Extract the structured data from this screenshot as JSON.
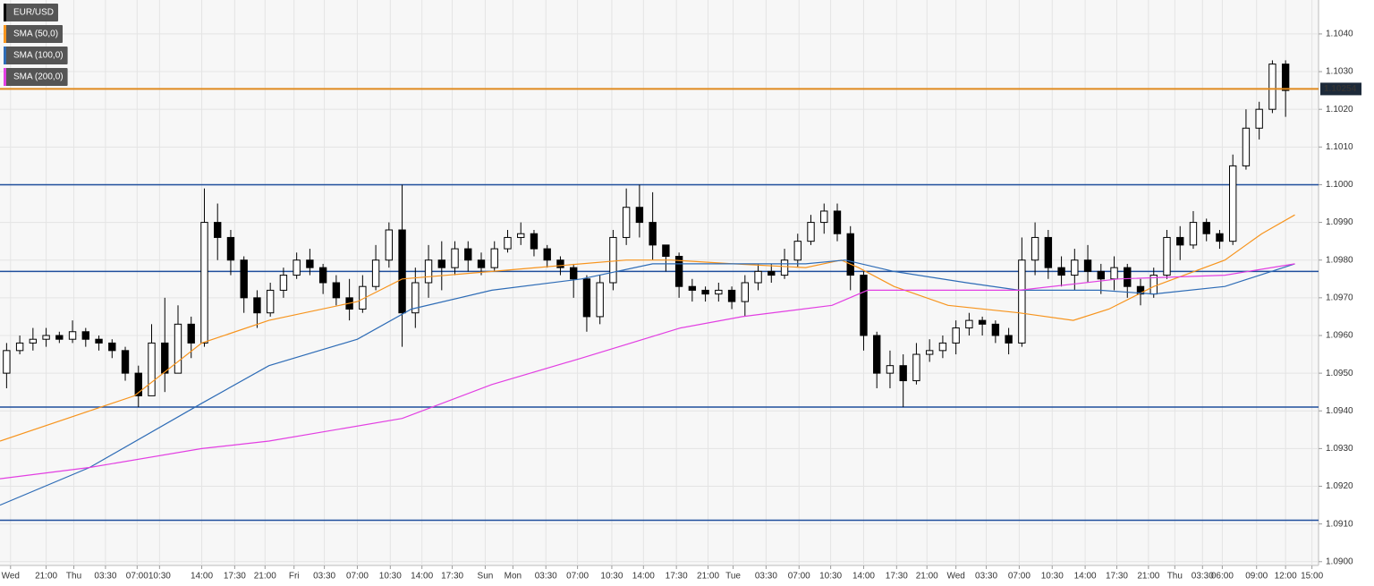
{
  "chart_data": {
    "type": "candlestick",
    "symbol": "EUR/USD",
    "xlim": [
      0,
      100
    ],
    "ylim": [
      1.0899,
      1.1049
    ],
    "grid": true,
    "up_color": "#ffffff",
    "down_color": "#000000",
    "ohlc": [
      [
        1.095,
        1.0958,
        1.0946,
        1.0956
      ],
      [
        1.0956,
        1.096,
        1.0955,
        1.0958
      ],
      [
        1.0958,
        1.0962,
        1.0956,
        1.0959
      ],
      [
        1.0959,
        1.0962,
        1.0957,
        1.096
      ],
      [
        1.096,
        1.0961,
        1.0958,
        1.0959
      ],
      [
        1.0959,
        1.0964,
        1.0958,
        1.0961
      ],
      [
        1.0961,
        1.0962,
        1.0957,
        1.0959
      ],
      [
        1.0959,
        1.096,
        1.0956,
        1.0958
      ],
      [
        1.0958,
        1.0959,
        1.0954,
        1.0956
      ],
      [
        1.0956,
        1.0957,
        1.0948,
        1.095
      ],
      [
        1.095,
        1.0952,
        1.0941,
        1.0944
      ],
      [
        1.0944,
        1.0963,
        1.0944,
        1.0958
      ],
      [
        1.0958,
        1.097,
        1.0945,
        1.095
      ],
      [
        1.095,
        1.0968,
        1.095,
        1.0963
      ],
      [
        1.0963,
        1.0965,
        1.0954,
        1.0958
      ],
      [
        1.0958,
        1.0999,
        1.0957,
        1.099
      ],
      [
        1.099,
        1.0995,
        1.098,
        1.0986
      ],
      [
        1.0986,
        1.0988,
        1.0976,
        1.098
      ],
      [
        1.098,
        1.0981,
        1.0966,
        1.097
      ],
      [
        1.097,
        1.0972,
        1.0962,
        1.0966
      ],
      [
        1.0966,
        1.0974,
        1.0965,
        1.0972
      ],
      [
        1.0972,
        1.0978,
        1.097,
        1.0976
      ],
      [
        1.0976,
        1.0982,
        1.0975,
        1.098
      ],
      [
        1.098,
        1.0983,
        1.0976,
        1.0978
      ],
      [
        1.0978,
        1.0979,
        1.0971,
        1.0974
      ],
      [
        1.0974,
        1.0976,
        1.0968,
        1.097
      ],
      [
        1.097,
        1.0975,
        1.0964,
        1.0967
      ],
      [
        1.0967,
        1.0976,
        1.0966,
        1.0973
      ],
      [
        1.0973,
        1.0984,
        1.0972,
        1.098
      ],
      [
        1.098,
        1.099,
        1.0978,
        1.0988
      ],
      [
        1.0988,
        1.1,
        1.0957,
        1.0966
      ],
      [
        1.0966,
        1.0978,
        1.0962,
        1.0974
      ],
      [
        1.0974,
        1.0984,
        1.097,
        1.098
      ],
      [
        1.098,
        1.0985,
        1.0972,
        1.0978
      ],
      [
        1.0978,
        1.0985,
        1.0976,
        1.0983
      ],
      [
        1.0983,
        1.0985,
        1.0977,
        1.098
      ],
      [
        1.098,
        1.0982,
        1.0976,
        1.0978
      ],
      [
        1.0978,
        1.0985,
        1.0977,
        1.0983
      ],
      [
        1.0983,
        1.0988,
        1.0982,
        1.0986
      ],
      [
        1.0986,
        1.099,
        1.0984,
        1.0987
      ],
      [
        1.0987,
        1.0988,
        1.0981,
        1.0983
      ],
      [
        1.0983,
        1.0984,
        1.0978,
        1.098
      ],
      [
        1.098,
        1.0981,
        1.0976,
        1.0978
      ],
      [
        1.0978,
        1.0979,
        1.097,
        1.0975
      ],
      [
        1.0975,
        1.0976,
        1.0961,
        1.0965
      ],
      [
        1.0965,
        1.0976,
        1.0963,
        1.0974
      ],
      [
        1.0974,
        1.0988,
        1.0972,
        1.0986
      ],
      [
        1.0986,
        1.0999,
        1.0984,
        1.0994
      ],
      [
        1.0994,
        1.1,
        1.0986,
        1.099
      ],
      [
        1.099,
        1.0998,
        1.098,
        1.0984
      ],
      [
        1.0984,
        1.0984,
        1.0977,
        1.0981
      ],
      [
        1.0981,
        1.0982,
        1.097,
        1.0973
      ],
      [
        1.0973,
        1.0975,
        1.0969,
        1.0972
      ],
      [
        1.0972,
        1.0973,
        1.0969,
        1.0971
      ],
      [
        1.0971,
        1.0974,
        1.0969,
        1.0972
      ],
      [
        1.0972,
        1.0973,
        1.0967,
        1.0969
      ],
      [
        1.0969,
        1.0976,
        1.0965,
        1.0974
      ],
      [
        1.0974,
        1.0979,
        1.0972,
        1.0977
      ],
      [
        1.0977,
        1.0979,
        1.0974,
        1.0976
      ],
      [
        1.0976,
        1.0983,
        1.0975,
        1.098
      ],
      [
        1.098,
        1.0987,
        1.0978,
        1.0985
      ],
      [
        1.0985,
        1.0992,
        1.0984,
        1.099
      ],
      [
        1.099,
        1.0995,
        1.0987,
        1.0993
      ],
      [
        1.0993,
        1.0995,
        1.0985,
        1.0987
      ],
      [
        1.0987,
        1.0989,
        1.0972,
        1.0976
      ],
      [
        1.0976,
        1.0977,
        1.0956,
        1.096
      ],
      [
        1.096,
        1.0961,
        1.0946,
        1.095
      ],
      [
        1.095,
        1.0956,
        1.0946,
        1.0952
      ],
      [
        1.0952,
        1.0955,
        1.0941,
        1.0948
      ],
      [
        1.0948,
        1.0958,
        1.0947,
        1.0955
      ],
      [
        1.0955,
        1.0959,
        1.0953,
        1.0956
      ],
      [
        1.0956,
        1.096,
        1.0954,
        1.0958
      ],
      [
        1.0958,
        1.0964,
        1.0955,
        1.0962
      ],
      [
        1.0962,
        1.0966,
        1.096,
        1.0964
      ],
      [
        1.0964,
        1.0965,
        1.096,
        1.0963
      ],
      [
        1.0963,
        1.0964,
        1.0958,
        1.096
      ],
      [
        1.096,
        1.0962,
        1.0955,
        1.0958
      ],
      [
        1.0958,
        1.0986,
        1.0957,
        1.098
      ],
      [
        1.098,
        1.099,
        1.0976,
        1.0986
      ],
      [
        1.0986,
        1.0988,
        1.0975,
        1.0978
      ],
      [
        1.0978,
        1.0981,
        1.0973,
        1.0976
      ],
      [
        1.0976,
        1.0983,
        1.0972,
        1.098
      ],
      [
        1.098,
        1.0984,
        1.0974,
        1.0977
      ],
      [
        1.0977,
        1.0979,
        1.0971,
        1.0975
      ],
      [
        1.0975,
        1.0981,
        1.0972,
        1.0978
      ],
      [
        1.0978,
        1.0979,
        1.097,
        1.0973
      ],
      [
        1.0973,
        1.0975,
        1.0968,
        1.0971
      ],
      [
        1.0971,
        1.0978,
        1.097,
        1.0976
      ],
      [
        1.0976,
        1.0988,
        1.0975,
        1.0986
      ],
      [
        1.0986,
        1.0989,
        1.098,
        1.0984
      ],
      [
        1.0984,
        1.0993,
        1.0983,
        1.099
      ],
      [
        1.099,
        1.0991,
        1.0985,
        1.0987
      ],
      [
        1.0987,
        1.0988,
        1.0983,
        1.0985
      ],
      [
        1.0985,
        1.1008,
        1.0984,
        1.1005
      ],
      [
        1.1005,
        1.102,
        1.1004,
        1.1015
      ],
      [
        1.1015,
        1.1022,
        1.1012,
        1.102
      ],
      [
        1.102,
        1.1033,
        1.1019,
        1.1032
      ],
      [
        1.1032,
        1.1033,
        1.1018,
        1.1025
      ]
    ],
    "series": [
      {
        "name": "SMA (50,0)",
        "color": "#f7941d",
        "x": [
          0,
          10.2,
          15.3,
          20.4,
          27.1,
          30.5,
          37.3,
          40.7,
          47.5,
          50.9,
          55.6,
          61.1,
          63.8,
          65.1,
          67.8,
          71.9,
          77.3,
          81.4,
          84.1,
          87.5,
          92.9,
          95.7,
          98.2
        ],
        "values": [
          1.0932,
          1.0944,
          1.0958,
          1.0964,
          1.0969,
          1.0975,
          1.0977,
          1.0978,
          1.098,
          1.098,
          1.0979,
          1.0978,
          1.098,
          1.0978,
          1.0973,
          1.0968,
          1.0966,
          1.0964,
          1.0967,
          1.0973,
          1.098,
          1.0987,
          1.0992
        ]
      },
      {
        "name": "SMA (100,0)",
        "color": "#2e6cb6",
        "x": [
          0,
          6.8,
          15.3,
          20.4,
          27.1,
          31.2,
          37.3,
          44.1,
          49.5,
          54.3,
          61.1,
          64.1,
          67.8,
          73.3,
          77.3,
          83.4,
          87.5,
          92.9,
          98.2
        ],
        "values": [
          1.0915,
          1.0925,
          1.0942,
          1.0952,
          1.0959,
          1.0967,
          1.0972,
          1.0975,
          1.0979,
          1.0979,
          1.0979,
          1.098,
          1.0977,
          1.0974,
          1.0972,
          1.0972,
          1.0971,
          1.0973,
          1.0979
        ]
      },
      {
        "name": "SMA (200,0)",
        "color": "#e23fe2",
        "x": [
          0,
          6.8,
          15.3,
          20.4,
          30.5,
          37.3,
          44.1,
          51.6,
          56.3,
          63.1,
          65.8,
          71.9,
          77.3,
          84.8,
          92.9,
          98.2
        ],
        "values": [
          1.0922,
          1.0925,
          1.093,
          1.0932,
          1.0938,
          1.0947,
          1.0954,
          1.0962,
          1.0965,
          1.0968,
          1.0972,
          1.0972,
          1.0972,
          1.0975,
          1.0976,
          1.0979
        ]
      }
    ],
    "levels": [
      1.1,
      1.0977,
      1.0941,
      1.0911
    ],
    "level_color": "#1f4e9c",
    "last_price": 1.10254,
    "last_price_color": "#e08a1e",
    "yticks": [
      {
        "value": 1.09,
        "label": "1.0900"
      },
      {
        "value": 1.091,
        "label": "1.0910"
      },
      {
        "value": 1.092,
        "label": "1.0920"
      },
      {
        "value": 1.093,
        "label": "1.0930"
      },
      {
        "value": 1.094,
        "label": "1.0940"
      },
      {
        "value": 1.095,
        "label": "1.0950"
      },
      {
        "value": 1.096,
        "label": "1.0960"
      },
      {
        "value": 1.097,
        "label": "1.0970"
      },
      {
        "value": 1.098,
        "label": "1.0980"
      },
      {
        "value": 1.099,
        "label": "1.0990"
      },
      {
        "value": 1.1,
        "label": "1.1000"
      },
      {
        "value": 1.101,
        "label": "1.1010"
      },
      {
        "value": 1.102,
        "label": "1.1020"
      },
      {
        "value": 1.103,
        "label": "1.1030"
      },
      {
        "value": 1.104,
        "label": "1.1040"
      }
    ],
    "xticks": [
      {
        "value": 0.8,
        "label": "Wed"
      },
      {
        "value": 3.5,
        "label": "21:00"
      },
      {
        "value": 5.6,
        "label": "Thu"
      },
      {
        "value": 8.0,
        "label": "03:30"
      },
      {
        "value": 10.4,
        "label": "07:00"
      },
      {
        "value": 12.1,
        "label": "10:30"
      },
      {
        "value": 15.3,
        "label": "14:00"
      },
      {
        "value": 17.8,
        "label": "17:30"
      },
      {
        "value": 20.1,
        "label": "21:00"
      },
      {
        "value": 22.3,
        "label": "Fri"
      },
      {
        "value": 24.6,
        "label": "03:30"
      },
      {
        "value": 27.1,
        "label": "07:00"
      },
      {
        "value": 29.6,
        "label": "10:30"
      },
      {
        "value": 32.0,
        "label": "14:00"
      },
      {
        "value": 34.3,
        "label": "17:30"
      },
      {
        "value": 36.8,
        "label": "Sun"
      },
      {
        "value": 38.9,
        "label": "Mon"
      },
      {
        "value": 41.4,
        "label": "03:30"
      },
      {
        "value": 43.8,
        "label": "07:00"
      },
      {
        "value": 46.4,
        "label": "10:30"
      },
      {
        "value": 48.8,
        "label": "14:00"
      },
      {
        "value": 51.3,
        "label": "17:30"
      },
      {
        "value": 53.7,
        "label": "21:00"
      },
      {
        "value": 55.6,
        "label": "Tue"
      },
      {
        "value": 58.1,
        "label": "03:30"
      },
      {
        "value": 60.6,
        "label": "07:00"
      },
      {
        "value": 63.0,
        "label": "10:30"
      },
      {
        "value": 65.5,
        "label": "14:00"
      },
      {
        "value": 68.0,
        "label": "17:30"
      },
      {
        "value": 70.3,
        "label": "21:00"
      },
      {
        "value": 72.5,
        "label": "Wed"
      },
      {
        "value": 74.8,
        "label": "03:30"
      },
      {
        "value": 77.3,
        "label": "07:00"
      },
      {
        "value": 79.8,
        "label": "10:30"
      },
      {
        "value": 82.3,
        "label": "14:00"
      },
      {
        "value": 84.7,
        "label": "17:30"
      },
      {
        "value": 87.1,
        "label": "21:00"
      },
      {
        "value": 89.1,
        "label": "Thu"
      },
      {
        "value": 91.2,
        "label": "03:30"
      },
      {
        "value": 92.7,
        "label": "06:00"
      },
      {
        "value": 95.3,
        "label": "09:00"
      },
      {
        "value": 97.5,
        "label": "12:00"
      },
      {
        "value": 99.5,
        "label": "15:00"
      }
    ]
  }
}
